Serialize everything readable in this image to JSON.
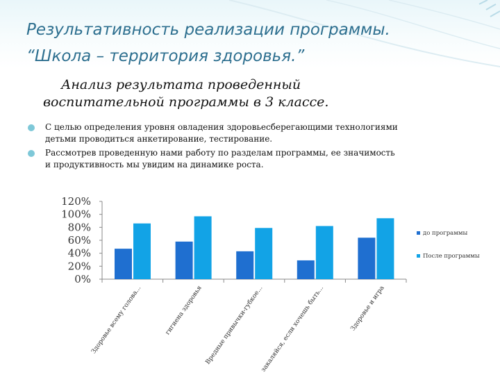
{
  "slide": {
    "title_line1": "Результативность реализации программы.",
    "title_line2": "“Школа – территория здоровья.”",
    "subtitle_line1": "Анализ результата проведенный",
    "subtitle_line2": "воспитательной программы в 3 классе.",
    "bullets": [
      "С целью определения уровня овладения здоровьесберегающими технологиями детьми проводиться анкетирование, тестирование.",
      "Рассмотрев проведенную нами работу по разделам программы, ее значимость и продуктивность мы увидим на динамике роста."
    ]
  },
  "colors": {
    "title": "#2d6f8f",
    "bullet_dot": "#7ec8d8",
    "series_before": "#1f6fd0",
    "series_after": "#12a3e6"
  },
  "chart_data": {
    "type": "bar",
    "categories": [
      "Здоровье всему голова...",
      "гигиена здоровья",
      "Вредные привычки-губкое...",
      "закаляйся, если хочешь быть...",
      "Здоровье и игра"
    ],
    "series": [
      {
        "name": "до программы",
        "values": [
          47,
          58,
          43,
          29,
          64
        ]
      },
      {
        "name": "После программы",
        "values": [
          86,
          97,
          79,
          82,
          94
        ]
      }
    ],
    "y_ticks": [
      "0%",
      "20%",
      "40%",
      "60%",
      "80%",
      "100%",
      "120%"
    ],
    "ylim": [
      0,
      120
    ],
    "grid": false,
    "legend": "right",
    "title": "",
    "xlabel": "",
    "ylabel": ""
  }
}
